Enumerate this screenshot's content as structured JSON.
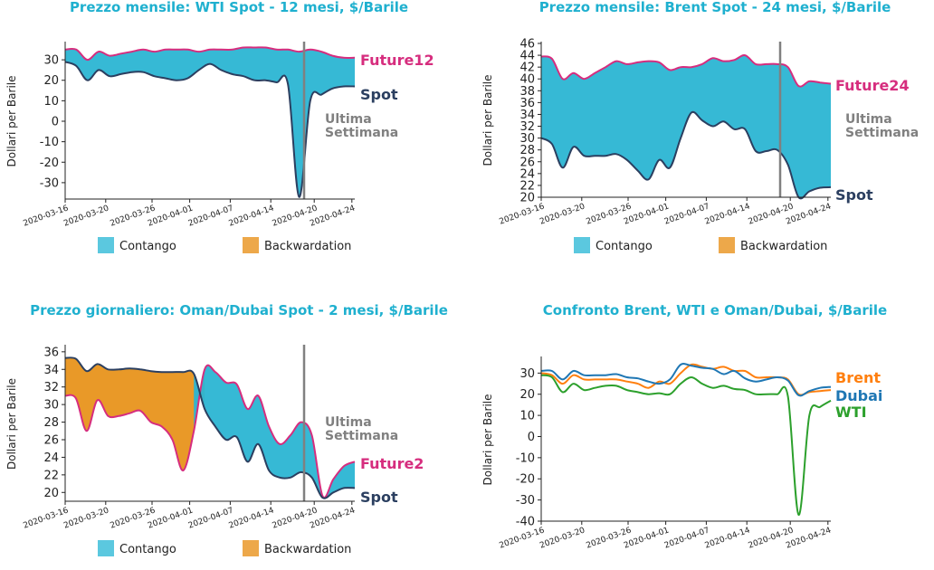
{
  "chart_data": [
    {
      "type": "area",
      "title": "Prezzo mensile: WTI Spot - 12 mesi, $/Barile",
      "ylabel": "Dollari per Barile",
      "ylim": [
        -38,
        38
      ],
      "yticks": [
        30,
        20,
        10,
        0,
        -10,
        -20,
        -30
      ],
      "xticks": [
        "2020-03-16",
        "2020-03-20",
        "2020-03-26",
        "2020-04-01",
        "2020-04-07",
        "2020-04-14",
        "2020-04-20",
        "2020-04-24"
      ],
      "vline_label": [
        "Ultima",
        "Settimana"
      ],
      "fill_legend": [
        "Contango",
        "Backwardation"
      ],
      "series": [
        {
          "name": "Future12",
          "color": "#d62d7e",
          "values": [
            [
              0,
              35
            ],
            [
              1,
              35
            ],
            [
              2,
              30
            ],
            [
              3,
              34
            ],
            [
              4,
              32
            ],
            [
              5,
              33
            ],
            [
              6,
              34
            ],
            [
              7,
              35
            ],
            [
              8,
              34
            ],
            [
              9,
              35
            ],
            [
              10,
              35
            ],
            [
              11,
              35
            ],
            [
              12,
              34
            ],
            [
              13,
              35
            ],
            [
              14,
              35
            ],
            [
              15,
              35
            ],
            [
              16,
              36
            ],
            [
              17,
              36
            ],
            [
              18,
              36
            ],
            [
              19,
              35
            ],
            [
              20,
              35
            ],
            [
              21,
              34
            ],
            [
              22,
              35
            ],
            [
              23,
              34
            ],
            [
              24,
              32
            ],
            [
              25,
              31
            ],
            [
              26,
              31
            ]
          ]
        },
        {
          "name": "Spot",
          "color": "#2b3f60",
          "values": [
            [
              0,
              29
            ],
            [
              1,
              27
            ],
            [
              2,
              20
            ],
            [
              3,
              25
            ],
            [
              4,
              22
            ],
            [
              5,
              23
            ],
            [
              6,
              24
            ],
            [
              7,
              24
            ],
            [
              8,
              22
            ],
            [
              9,
              21
            ],
            [
              10,
              20
            ],
            [
              11,
              21
            ],
            [
              12,
              25
            ],
            [
              13,
              28
            ],
            [
              14,
              25
            ],
            [
              15,
              23
            ],
            [
              16,
              22
            ],
            [
              17,
              20
            ],
            [
              18,
              20
            ],
            [
              19,
              19
            ],
            [
              20,
              18
            ],
            [
              21,
              -37
            ],
            [
              22,
              10
            ],
            [
              23,
              13
            ],
            [
              24,
              16
            ],
            [
              25,
              17
            ],
            [
              26,
              17
            ]
          ]
        }
      ]
    },
    {
      "type": "area",
      "title": "Prezzo mensile: Brent Spot - 24 mesi, $/Barile",
      "ylabel": "Dollari per Barile",
      "ylim": [
        20,
        46
      ],
      "yticks": [
        46,
        44,
        42,
        40,
        38,
        36,
        34,
        32,
        30,
        28,
        26,
        24,
        22,
        20
      ],
      "xticks": [
        "2020-03-16",
        "2020-03-20",
        "2020-03-26",
        "2020-04-01",
        "2020-04-07",
        "2020-04-14",
        "2020-04-20",
        "2020-04-24"
      ],
      "vline_label": [
        "Ultima",
        "Settimana"
      ],
      "fill_legend": [
        "Contango",
        "Backwardation"
      ],
      "series": [
        {
          "name": "Future24",
          "color": "#d62d7e",
          "values": [
            [
              0,
              43.8
            ],
            [
              1,
              43.4
            ],
            [
              2,
              40
            ],
            [
              3,
              41
            ],
            [
              4,
              40
            ],
            [
              5,
              41
            ],
            [
              6,
              42
            ],
            [
              7,
              43
            ],
            [
              8,
              42.5
            ],
            [
              9,
              42.8
            ],
            [
              10,
              43
            ],
            [
              11,
              42.8
            ],
            [
              12,
              41.5
            ],
            [
              13,
              42
            ],
            [
              14,
              42
            ],
            [
              15,
              42.5
            ],
            [
              16,
              43.5
            ],
            [
              17,
              43
            ],
            [
              18,
              43.2
            ],
            [
              19,
              44
            ],
            [
              20,
              42.5
            ],
            [
              21,
              42.5
            ],
            [
              22,
              42.5
            ],
            [
              23,
              42
            ],
            [
              24,
              38.8
            ],
            [
              25,
              39.6
            ],
            [
              26,
              39.4
            ],
            [
              27,
              39.2
            ]
          ]
        },
        {
          "name": "Spot",
          "color": "#2b3f60",
          "values": [
            [
              0,
              30
            ],
            [
              1,
              29
            ],
            [
              2,
              25
            ],
            [
              3,
              28.5
            ],
            [
              4,
              27
            ],
            [
              5,
              27
            ],
            [
              6,
              27
            ],
            [
              7,
              27.3
            ],
            [
              8,
              26.3
            ],
            [
              9,
              24.5
            ],
            [
              10,
              23
            ],
            [
              11,
              26.3
            ],
            [
              12,
              25
            ],
            [
              13,
              30
            ],
            [
              14,
              34.3
            ],
            [
              15,
              33
            ],
            [
              16,
              32
            ],
            [
              17,
              32.8
            ],
            [
              18,
              31.5
            ],
            [
              19,
              31.5
            ],
            [
              20,
              27.8
            ],
            [
              21,
              27.8
            ],
            [
              22,
              28
            ],
            [
              23,
              25.5
            ],
            [
              24,
              20
            ],
            [
              25,
              21
            ],
            [
              26,
              21.6
            ],
            [
              27,
              21.7
            ]
          ]
        }
      ]
    },
    {
      "type": "area",
      "title": "Prezzo giornaliero: Oman/Dubai Spot - 2 mesi, $/Barile",
      "ylabel": "Dollari per Barile",
      "ylim": [
        19,
        36.6
      ],
      "yticks": [
        36,
        34,
        32,
        30,
        28,
        26,
        24,
        22,
        20
      ],
      "xticks": [
        "2020-03-16",
        "2020-03-20",
        "2020-03-26",
        "2020-04-01",
        "2020-04-07",
        "2020-04-14",
        "2020-04-20",
        "2020-04-24"
      ],
      "vline_label": [
        "Ultima",
        "Settimana"
      ],
      "fill_legend": [
        "Contango",
        "Backwardation"
      ],
      "series": [
        {
          "name": "Future2",
          "color": "#d62d7e",
          "values": [
            [
              0,
              31
            ],
            [
              1,
              30.7
            ],
            [
              2,
              27
            ],
            [
              3,
              30.5
            ],
            [
              4,
              28.7
            ],
            [
              5,
              28.7
            ],
            [
              6,
              29
            ],
            [
              7,
              29.3
            ],
            [
              8,
              28
            ],
            [
              9,
              27.5
            ],
            [
              10,
              26
            ],
            [
              11,
              22.5
            ],
            [
              12,
              27
            ],
            [
              13,
              34
            ],
            [
              14,
              33.7
            ],
            [
              15,
              32.5
            ],
            [
              16,
              32.3
            ],
            [
              17,
              29.5
            ],
            [
              18,
              31
            ],
            [
              19,
              27.5
            ],
            [
              20,
              25.5
            ],
            [
              21,
              26.5
            ],
            [
              22,
              28
            ],
            [
              23,
              26.5
            ],
            [
              24,
              19.6
            ],
            [
              25,
              21.5
            ],
            [
              26,
              23
            ],
            [
              27,
              23.5
            ]
          ]
        },
        {
          "name": "Spot",
          "color": "#2b3f60",
          "values": [
            [
              0,
              35.3
            ],
            [
              1,
              35.2
            ],
            [
              2,
              33.8
            ],
            [
              3,
              34.6
            ],
            [
              4,
              34
            ],
            [
              5,
              34
            ],
            [
              6,
              34.1
            ],
            [
              7,
              34
            ],
            [
              8,
              33.8
            ],
            [
              9,
              33.7
            ],
            [
              10,
              33.7
            ],
            [
              11,
              33.7
            ],
            [
              12,
              33.5
            ],
            [
              13,
              29.5
            ],
            [
              14,
              27.5
            ],
            [
              15,
              26
            ],
            [
              16,
              26.3
            ],
            [
              17,
              23.5
            ],
            [
              18,
              25.5
            ],
            [
              19,
              22.5
            ],
            [
              20,
              21.7
            ],
            [
              21,
              21.7
            ],
            [
              22,
              22.3
            ],
            [
              23,
              21.7
            ],
            [
              24,
              19.4
            ],
            [
              25,
              20
            ],
            [
              26,
              20.5
            ],
            [
              27,
              20.5
            ]
          ]
        }
      ]
    },
    {
      "type": "line",
      "title": "Confronto Brent, WTI e Oman/Dubai, $/Barile",
      "ylabel": "Dollari per Barile",
      "ylim": [
        -40,
        37
      ],
      "yticks": [
        30,
        20,
        10,
        0,
        -10,
        -20,
        -30,
        -40
      ],
      "xticks": [
        "2020-03-16",
        "2020-03-20",
        "2020-03-26",
        "2020-04-01",
        "2020-04-07",
        "2020-04-14",
        "2020-04-20",
        "2020-04-24"
      ],
      "series": [
        {
          "name": "Brent",
          "color": "#ff7f0e",
          "values": [
            [
              0,
              30
            ],
            [
              1,
              29
            ],
            [
              2,
              25
            ],
            [
              3,
              29
            ],
            [
              4,
              27
            ],
            [
              5,
              27
            ],
            [
              6,
              27
            ],
            [
              7,
              27
            ],
            [
              8,
              26
            ],
            [
              9,
              25
            ],
            [
              10,
              23
            ],
            [
              11,
              26
            ],
            [
              12,
              25
            ],
            [
              13,
              30
            ],
            [
              14,
              34
            ],
            [
              15,
              33
            ],
            [
              16,
              32
            ],
            [
              17,
              33
            ],
            [
              18,
              31
            ],
            [
              19,
              31
            ],
            [
              20,
              28
            ],
            [
              21,
              28
            ],
            [
              22,
              28
            ],
            [
              23,
              27
            ],
            [
              24,
              20
            ],
            [
              25,
              21
            ],
            [
              26,
              21.5
            ],
            [
              27,
              22
            ]
          ]
        },
        {
          "name": "Dubai",
          "color": "#1f77b4",
          "values": [
            [
              0,
              31
            ],
            [
              1,
              31
            ],
            [
              2,
              27
            ],
            [
              3,
              31
            ],
            [
              4,
              29
            ],
            [
              5,
              29
            ],
            [
              6,
              29
            ],
            [
              7,
              29.5
            ],
            [
              8,
              28
            ],
            [
              9,
              27.5
            ],
            [
              10,
              26
            ],
            [
              11,
              25
            ],
            [
              12,
              27
            ],
            [
              13,
              34
            ],
            [
              14,
              33.5
            ],
            [
              15,
              32.5
            ],
            [
              16,
              32
            ],
            [
              17,
              29.5
            ],
            [
              18,
              31
            ],
            [
              19,
              27.5
            ],
            [
              20,
              26
            ],
            [
              21,
              27
            ],
            [
              22,
              28
            ],
            [
              23,
              26.5
            ],
            [
              24,
              19.5
            ],
            [
              25,
              21.5
            ],
            [
              26,
              23
            ],
            [
              27,
              23.5
            ]
          ]
        },
        {
          "name": "WTI",
          "color": "#2ca02c",
          "values": [
            [
              0,
              29
            ],
            [
              1,
              28
            ],
            [
              2,
              21
            ],
            [
              3,
              25
            ],
            [
              4,
              22
            ],
            [
              5,
              23
            ],
            [
              6,
              24
            ],
            [
              7,
              24
            ],
            [
              8,
              22
            ],
            [
              9,
              21
            ],
            [
              10,
              20
            ],
            [
              11,
              20.5
            ],
            [
              12,
              20
            ],
            [
              13,
              25
            ],
            [
              14,
              28
            ],
            [
              15,
              25
            ],
            [
              16,
              23
            ],
            [
              17,
              24
            ],
            [
              18,
              22.5
            ],
            [
              19,
              22
            ],
            [
              20,
              20
            ],
            [
              21,
              20
            ],
            [
              22,
              20
            ],
            [
              23,
              19
            ],
            [
              24,
              -37
            ],
            [
              25,
              10
            ],
            [
              26,
              14
            ],
            [
              27,
              17
            ]
          ]
        }
      ]
    }
  ]
}
